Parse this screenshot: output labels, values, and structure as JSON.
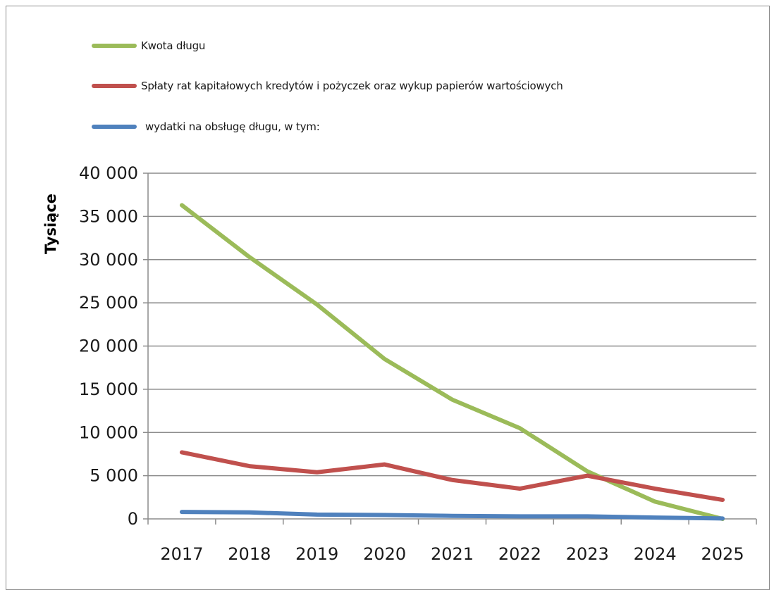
{
  "chart_data": {
    "type": "line",
    "title": "",
    "xlabel": "",
    "ylabel": "Tysiące",
    "categories": [
      "2017",
      "2018",
      "2019",
      "2020",
      "2021",
      "2022",
      "2023",
      "2024",
      "2025"
    ],
    "ylim": [
      0,
      40000
    ],
    "yticks": [
      0,
      5000,
      10000,
      15000,
      20000,
      25000,
      30000,
      35000,
      40000
    ],
    "ytick_labels": [
      "0",
      "5 000",
      "10 000",
      "15 000",
      "20 000",
      "25 000",
      "30 000",
      "35 000",
      "40 000"
    ],
    "grid": true,
    "legend_position": "top-left",
    "series": [
      {
        "name": "Kwota długu",
        "color": "#9bbb59",
        "values": [
          36300,
          30300,
          24800,
          18500,
          13800,
          10500,
          5500,
          2000,
          0
        ]
      },
      {
        "name": "Spłaty rat kapitałowych kredytów i pożyczek oraz wykup papierów wartościowych",
        "color": "#c0504d",
        "values": [
          7700,
          6100,
          5400,
          6300,
          4500,
          3500,
          5000,
          3500,
          2200
        ]
      },
      {
        "name": "wydatki na obsługę długu, w tym:",
        "color": "#4f81bd",
        "values": [
          800,
          750,
          500,
          450,
          350,
          300,
          300,
          150,
          50
        ]
      }
    ]
  }
}
